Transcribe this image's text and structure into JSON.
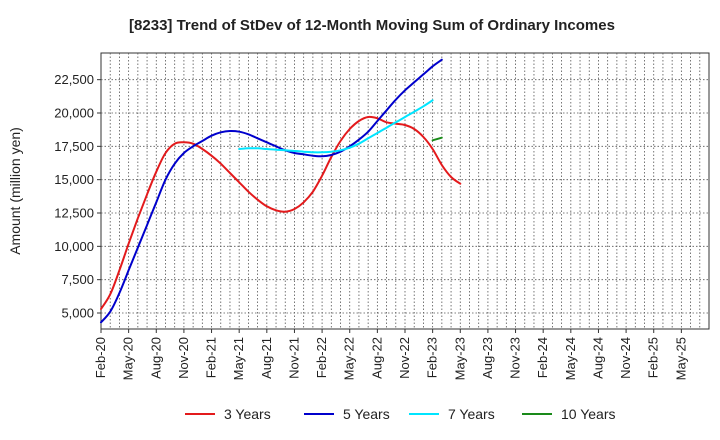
{
  "chart_data": {
    "type": "line",
    "title": "[8233]  Trend of StDev of 12-Month Moving Sum of Ordinary Incomes",
    "xlabel": "",
    "ylabel": "Amount (million yen)",
    "x_ticks": [
      "Feb-20",
      "May-20",
      "Aug-20",
      "Nov-20",
      "Feb-21",
      "May-21",
      "Aug-21",
      "Nov-21",
      "Feb-22",
      "May-22",
      "Aug-22",
      "Nov-22",
      "Feb-23",
      "May-23",
      "Aug-23",
      "Nov-23",
      "Feb-24",
      "May-24",
      "Aug-24",
      "Nov-24",
      "Feb-25",
      "May-25"
    ],
    "y_ticks": [
      5000,
      7500,
      10000,
      12500,
      15000,
      17500,
      20000,
      22500
    ],
    "y_tick_labels": [
      "5,000",
      "7,500",
      "10,000",
      "12,500",
      "15,000",
      "17,500",
      "20,000",
      "22,500"
    ],
    "ylim": [
      3800,
      24500
    ],
    "grid": true,
    "legend_position": "bottom",
    "series": [
      {
        "name": "3 Years",
        "color": "#e31a1c",
        "points": [
          [
            0,
            5300
          ],
          [
            1,
            6400
          ],
          [
            2,
            8200
          ],
          [
            3,
            10200
          ],
          [
            4,
            12100
          ],
          [
            5,
            13900
          ],
          [
            6,
            15600
          ],
          [
            7,
            17000
          ],
          [
            8,
            17700
          ],
          [
            9,
            17800
          ],
          [
            10,
            17700
          ],
          [
            11,
            17300
          ],
          [
            12,
            16800
          ],
          [
            13,
            16200
          ],
          [
            14,
            15500
          ],
          [
            15,
            14800
          ],
          [
            16,
            14100
          ],
          [
            17,
            13500
          ],
          [
            18,
            13000
          ],
          [
            19,
            12700
          ],
          [
            20,
            12600
          ],
          [
            21,
            12800
          ],
          [
            22,
            13300
          ],
          [
            23,
            14100
          ],
          [
            24,
            15300
          ],
          [
            25,
            16700
          ],
          [
            26,
            17900
          ],
          [
            27,
            18800
          ],
          [
            28,
            19400
          ],
          [
            29,
            19700
          ],
          [
            30,
            19600
          ],
          [
            31,
            19300
          ],
          [
            32,
            19200
          ],
          [
            33,
            19100
          ],
          [
            34,
            18800
          ],
          [
            35,
            18200
          ],
          [
            36,
            17300
          ],
          [
            37,
            16100
          ],
          [
            38,
            15200
          ],
          [
            39,
            14700
          ]
        ]
      },
      {
        "name": "5 Years",
        "color": "#0000cc",
        "points": [
          [
            0,
            4300
          ],
          [
            1,
            5100
          ],
          [
            2,
            6500
          ],
          [
            3,
            8200
          ],
          [
            4,
            9900
          ],
          [
            5,
            11600
          ],
          [
            6,
            13300
          ],
          [
            7,
            15000
          ],
          [
            8,
            16200
          ],
          [
            9,
            17000
          ],
          [
            10,
            17500
          ],
          [
            11,
            17900
          ],
          [
            12,
            18300
          ],
          [
            13,
            18550
          ],
          [
            14,
            18650
          ],
          [
            15,
            18600
          ],
          [
            16,
            18400
          ],
          [
            17,
            18100
          ],
          [
            18,
            17800
          ],
          [
            19,
            17500
          ],
          [
            20,
            17200
          ],
          [
            21,
            17000
          ],
          [
            22,
            16900
          ],
          [
            23,
            16800
          ],
          [
            24,
            16750
          ],
          [
            25,
            16850
          ],
          [
            26,
            17100
          ],
          [
            27,
            17500
          ],
          [
            28,
            18000
          ],
          [
            29,
            18600
          ],
          [
            30,
            19400
          ],
          [
            31,
            20200
          ],
          [
            32,
            21000
          ],
          [
            33,
            21700
          ],
          [
            34,
            22300
          ],
          [
            35,
            22900
          ],
          [
            36,
            23500
          ],
          [
            37,
            24000
          ]
        ]
      },
      {
        "name": "7 Years",
        "color": "#00e5ff",
        "points": [
          [
            15,
            17300
          ],
          [
            16,
            17350
          ],
          [
            17,
            17350
          ],
          [
            18,
            17300
          ],
          [
            19,
            17250
          ],
          [
            20,
            17200
          ],
          [
            21,
            17150
          ],
          [
            22,
            17100
          ],
          [
            23,
            17050
          ],
          [
            24,
            17050
          ],
          [
            25,
            17100
          ],
          [
            26,
            17200
          ],
          [
            27,
            17400
          ],
          [
            28,
            17700
          ],
          [
            29,
            18100
          ],
          [
            30,
            18500
          ],
          [
            31,
            18900
          ],
          [
            32,
            19300
          ],
          [
            33,
            19700
          ],
          [
            34,
            20100
          ],
          [
            35,
            20500
          ],
          [
            36,
            20950
          ]
        ]
      },
      {
        "name": "10 Years",
        "color": "#1a8a1a",
        "points": [
          [
            36,
            17950
          ],
          [
            37,
            18150
          ]
        ]
      }
    ]
  }
}
